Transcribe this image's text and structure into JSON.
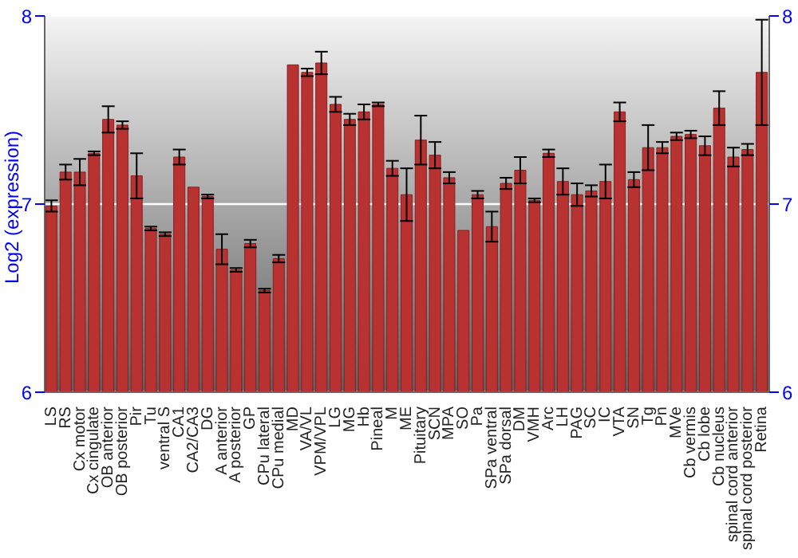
{
  "chart_data": {
    "type": "bar",
    "ylabel": "Log2 (expression)",
    "categories": [
      "LS",
      "RS",
      "Cx motor",
      "Cx cingulate",
      "OB anterior",
      "OB posterior",
      "Pir",
      "Tu",
      "ventral S",
      "CA1",
      "CA2/CA3",
      "DG",
      "A anterior",
      "A posterior",
      "GP",
      "CPu lateral",
      "CPu medial",
      "MD",
      "VA/VL",
      "VPM/VPL",
      "LG",
      "MG",
      "Hb",
      "Pineal",
      "M",
      "ME",
      "Pituitary",
      "SCN",
      "MPA",
      "SO",
      "Pa",
      "SPa ventral",
      "SPa dorsal",
      "DM",
      "VMH",
      "Arc",
      "LH",
      "PAG",
      "SC",
      "IC",
      "VTA",
      "SN",
      "Tg",
      "Pn",
      "MVe",
      "Cb vermis",
      "Cb lobe",
      "Cb nucleus",
      "spinal cord anterior",
      "spinal cord posterior",
      "Retina"
    ],
    "values": [
      6.99,
      7.17,
      7.17,
      7.27,
      7.45,
      7.42,
      7.15,
      6.87,
      6.84,
      7.25,
      7.09,
      7.04,
      6.76,
      6.65,
      6.79,
      6.54,
      6.71,
      7.74,
      7.7,
      7.75,
      7.53,
      7.45,
      7.49,
      7.53,
      7.19,
      7.05,
      7.34,
      7.26,
      7.14,
      6.86,
      7.05,
      6.88,
      7.11,
      7.18,
      7.02,
      7.27,
      7.12,
      7.05,
      7.07,
      7.12,
      7.49,
      7.13,
      7.3,
      7.3,
      7.36,
      7.37,
      7.31,
      7.51,
      7.25,
      7.29,
      7.7
    ],
    "errors": [
      0.03,
      0.04,
      0.07,
      0.01,
      0.07,
      0.02,
      0.12,
      0.01,
      0.01,
      0.04,
      null,
      0.01,
      0.08,
      0.01,
      0.02,
      0.01,
      0.02,
      null,
      0.02,
      0.06,
      0.04,
      0.03,
      0.04,
      0.01,
      0.04,
      0.14,
      0.13,
      0.07,
      0.03,
      null,
      0.02,
      0.08,
      0.03,
      0.07,
      0.01,
      0.02,
      0.07,
      0.06,
      0.03,
      0.09,
      0.05,
      0.04,
      0.12,
      0.03,
      0.02,
      0.02,
      0.05,
      0.09,
      0.05,
      0.03,
      0.28
    ],
    "color": "#b83232",
    "ylim": [
      6,
      8
    ],
    "yticks": [
      6,
      7,
      8
    ],
    "y2lim": [
      6,
      8
    ],
    "y2ticks": [
      6,
      7,
      8
    ],
    "grid": "y"
  }
}
